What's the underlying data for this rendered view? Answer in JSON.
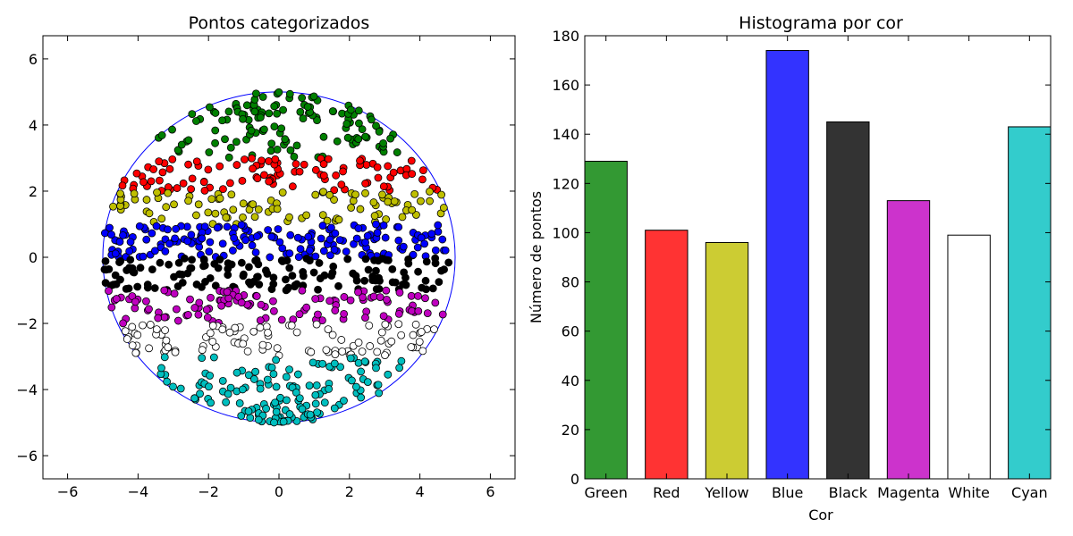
{
  "chart_data": [
    {
      "type": "scatter",
      "title": "Pontos categorizados",
      "xlabel": "",
      "ylabel": "",
      "xlim": [
        -6.7,
        6.7
      ],
      "ylim": [
        -6.7,
        6.7
      ],
      "xticks": [
        -6,
        -4,
        -2,
        0,
        2,
        4,
        6
      ],
      "yticks": [
        -6,
        -4,
        -2,
        0,
        2,
        4,
        6
      ],
      "xtick_labels": [
        "−6",
        "−4",
        "−2",
        "0",
        "2",
        "4",
        "6"
      ],
      "ytick_labels": [
        "−6",
        "−4",
        "−2",
        "0",
        "2",
        "4",
        "6"
      ],
      "circle": {
        "center": [
          0,
          0
        ],
        "radius": 5,
        "color": "#0000ff"
      },
      "grid": false,
      "series": [
        {
          "color": "#008000",
          "y_range": [
            3.0,
            5.0
          ],
          "count": 129
        },
        {
          "color": "#ff0000",
          "y_range": [
            2.0,
            3.0
          ],
          "count": 101
        },
        {
          "color": "#bfbf00",
          "y_range": [
            1.0,
            2.0
          ],
          "count": 96
        },
        {
          "color": "#0000ff",
          "y_range": [
            0.0,
            1.0
          ],
          "count": 174
        },
        {
          "color": "#000000",
          "y_range": [
            -1.0,
            0.0
          ],
          "count": 145
        },
        {
          "color": "#bf00bf",
          "y_range": [
            -2.0,
            -1.0
          ],
          "count": 113
        },
        {
          "color": "#ffffff",
          "y_range": [
            -3.0,
            -2.0
          ],
          "count": 99
        },
        {
          "color": "#00bfbf",
          "y_range": [
            -5.0,
            -3.0
          ],
          "count": 143
        }
      ]
    },
    {
      "type": "bar",
      "title": "Histograma por cor",
      "xlabel": "Cor",
      "ylabel": "Número de pontos",
      "ylim": [
        0,
        180
      ],
      "yticks": [
        0,
        20,
        40,
        60,
        80,
        100,
        120,
        140,
        160,
        180
      ],
      "ytick_labels": [
        "0",
        "20",
        "40",
        "60",
        "80",
        "100",
        "120",
        "140",
        "160",
        "180"
      ],
      "categories": [
        "Green",
        "Red",
        "Yellow",
        "Blue",
        "Black",
        "Magenta",
        "White",
        "Cyan"
      ],
      "values": [
        129,
        101,
        96,
        174,
        145,
        113,
        99,
        143
      ],
      "colors": [
        "#339933",
        "#ff3333",
        "#cccc33",
        "#3333ff",
        "#333333",
        "#cc33cc",
        "#ffffff",
        "#33cccc"
      ],
      "grid": false
    }
  ]
}
